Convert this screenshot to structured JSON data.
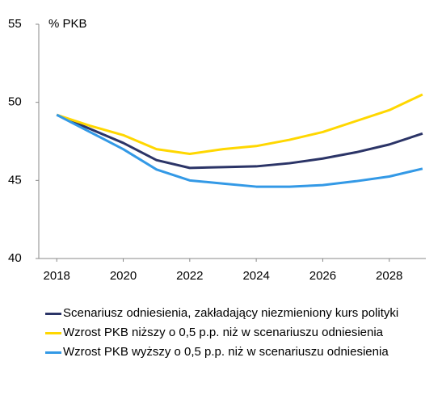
{
  "chart_data": {
    "type": "line",
    "y_label": "% PKB",
    "x": [
      2018,
      2019,
      2020,
      2021,
      2022,
      2023,
      2024,
      2025,
      2026,
      2027,
      2028,
      2029
    ],
    "series": [
      {
        "name": "Scenariusz odniesienia, zakładający niezmieniony kurs polityki",
        "color": "#2b3467",
        "values": [
          49.2,
          48.3,
          47.4,
          46.3,
          45.8,
          45.85,
          45.9,
          46.1,
          46.4,
          46.8,
          47.3,
          48.0
        ]
      },
      {
        "name": "Wzrost PKB niższy o 0,5 p.p. niż w scenariuszu odniesienia",
        "color": "#ffd700",
        "values": [
          49.2,
          48.5,
          47.9,
          47.0,
          46.7,
          47.0,
          47.2,
          47.6,
          48.1,
          48.8,
          49.5,
          50.5
        ]
      },
      {
        "name": "Wzrost PKB wyższy o 0,5 p.p. niż w scenariuszu odniesienia",
        "color": "#3399e6",
        "values": [
          49.2,
          48.1,
          47.0,
          45.7,
          45.0,
          44.8,
          44.6,
          44.6,
          44.7,
          44.95,
          45.25,
          45.75
        ]
      }
    ],
    "xlim": [
      2017.46,
      2029.1
    ],
    "xticks": [
      2018,
      2020,
      2022,
      2024,
      2026,
      2028
    ],
    "ylim": [
      40,
      55
    ],
    "yticks": [
      40,
      45,
      50,
      55
    ],
    "grid": false
  }
}
